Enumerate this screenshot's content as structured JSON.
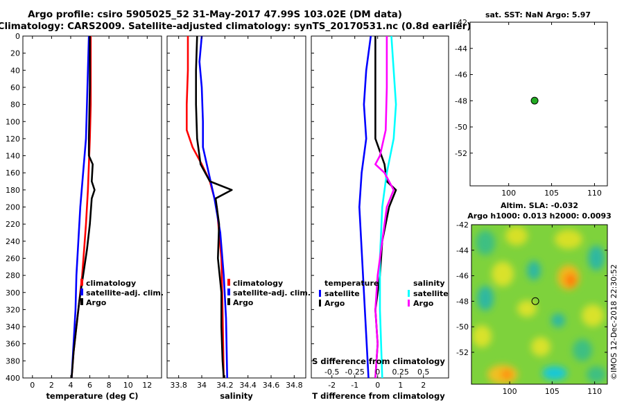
{
  "header": {
    "line1": "Argo profile: csiro 5905025_52 31-May-2017 47.99S 103.02E (DM data)",
    "line2": "Climatology: CARS2009. Satellite-adjusted climatology: synTS_20170531.nc (0.8d earlier)"
  },
  "colors": {
    "climatology": "#ff0000",
    "satellite": "#0000ff",
    "argo": "#000000",
    "sal_satellite": "#00ffff",
    "sal_argo": "#ff00ff"
  },
  "chart_data": [
    {
      "id": "temp",
      "type": "line",
      "xlabel": "temperature (deg C)",
      "xlim": [
        -1,
        13.5
      ],
      "ylim": [
        0,
        400
      ],
      "xticks": [
        0,
        2,
        4,
        6,
        8,
        10,
        12
      ],
      "yticks": [
        0,
        20,
        40,
        60,
        80,
        100,
        120,
        140,
        160,
        180,
        200,
        220,
        240,
        260,
        280,
        300,
        320,
        340,
        360,
        380,
        400
      ],
      "legend": {
        "position": "bottom-right",
        "entries": [
          "climatology",
          "satellite-adj. clim.",
          "Argo"
        ]
      },
      "series": [
        {
          "name": "climatology",
          "color": "#ff0000",
          "points": [
            [
              6.1,
              0
            ],
            [
              6.1,
              40
            ],
            [
              6.1,
              80
            ],
            [
              6.0,
              120
            ],
            [
              5.9,
              150
            ],
            [
              5.8,
              180
            ],
            [
              5.6,
              220
            ],
            [
              5.4,
              250
            ],
            [
              5.2,
              280
            ],
            [
              4.9,
              310
            ],
            [
              4.6,
              340
            ],
            [
              4.3,
              370
            ],
            [
              4.1,
              400
            ]
          ]
        },
        {
          "name": "satellite-adj. clim.",
          "color": "#0000ff",
          "points": [
            [
              5.9,
              0
            ],
            [
              5.8,
              40
            ],
            [
              5.7,
              80
            ],
            [
              5.6,
              120
            ],
            [
              5.3,
              160
            ],
            [
              5.0,
              200
            ],
            [
              4.8,
              240
            ],
            [
              4.6,
              280
            ],
            [
              4.5,
              320
            ],
            [
              4.3,
              360
            ],
            [
              4.1,
              400
            ]
          ]
        },
        {
          "name": "Argo",
          "color": "#000000",
          "points": [
            [
              6.0,
              0
            ],
            [
              6.0,
              60
            ],
            [
              5.9,
              120
            ],
            [
              5.9,
              140
            ],
            [
              6.3,
              150
            ],
            [
              6.2,
              170
            ],
            [
              6.5,
              180
            ],
            [
              6.2,
              190
            ],
            [
              6.0,
              220
            ],
            [
              5.7,
              250
            ],
            [
              5.3,
              280
            ],
            [
              4.9,
              310
            ],
            [
              4.6,
              340
            ],
            [
              4.3,
              370
            ],
            [
              4.1,
              400
            ]
          ]
        }
      ]
    },
    {
      "id": "sal",
      "type": "line",
      "xlabel": "salinity",
      "xlim": [
        33.7,
        34.9
      ],
      "ylim": [
        0,
        400
      ],
      "xticks": [
        33.8,
        34,
        34.2,
        34.4,
        34.6,
        34.8
      ],
      "legend": {
        "position": "bottom-right",
        "entries": [
          "climatology",
          "satellite-adj. clim.",
          "Argo"
        ]
      },
      "series": [
        {
          "name": "climatology",
          "color": "#ff0000",
          "points": [
            [
              33.88,
              0
            ],
            [
              33.88,
              40
            ],
            [
              33.87,
              80
            ],
            [
              33.87,
              110
            ],
            [
              33.92,
              130
            ],
            [
              34.0,
              150
            ],
            [
              34.07,
              170
            ],
            [
              34.13,
              200
            ],
            [
              34.17,
              260
            ],
            [
              34.18,
              320
            ],
            [
              34.19,
              400
            ]
          ]
        },
        {
          "name": "satellite-adj. clim.",
          "color": "#0000ff",
          "points": [
            [
              34.0,
              0
            ],
            [
              33.98,
              30
            ],
            [
              34.0,
              60
            ],
            [
              34.01,
              100
            ],
            [
              34.01,
              130
            ],
            [
              34.06,
              160
            ],
            [
              34.11,
              190
            ],
            [
              34.16,
              230
            ],
            [
              34.19,
              280
            ],
            [
              34.21,
              330
            ],
            [
              34.22,
              400
            ]
          ]
        },
        {
          "name": "Argo",
          "color": "#000000",
          "points": [
            [
              33.96,
              0
            ],
            [
              33.95,
              40
            ],
            [
              33.95,
              80
            ],
            [
              33.96,
              120
            ],
            [
              33.99,
              150
            ],
            [
              34.07,
              170
            ],
            [
              34.26,
              180
            ],
            [
              34.12,
              190
            ],
            [
              34.15,
              220
            ],
            [
              34.14,
              260
            ],
            [
              34.17,
              300
            ],
            [
              34.17,
              340
            ],
            [
              34.18,
              380
            ],
            [
              34.19,
              400
            ]
          ]
        }
      ]
    },
    {
      "id": "diff",
      "type": "line",
      "xlabel": "T difference from climatology",
      "top_label": "S difference from climatology",
      "xlim": [
        -2.9,
        3.1
      ],
      "ylim": [
        0,
        400
      ],
      "xticks": [
        -2,
        -1,
        0,
        1,
        2
      ],
      "top_ticks": [
        {
          "label": "-0.5",
          "at": -2.0
        },
        {
          "label": "-0.25",
          "at": -1.0
        },
        {
          "label": "0",
          "at": 0.0
        },
        {
          "label": "0.25",
          "at": 1.0
        },
        {
          "label": "0.5",
          "at": 2.0
        }
      ],
      "legend_left": {
        "title": "temperature",
        "entries": [
          "satellite",
          "Argo"
        ]
      },
      "legend_right": {
        "title": "salinity",
        "entries": [
          "satellite",
          "Argo"
        ]
      },
      "series": [
        {
          "name": "temperature satellite",
          "color": "#0000ff",
          "points": [
            [
              -0.3,
              0
            ],
            [
              -0.5,
              40
            ],
            [
              -0.6,
              80
            ],
            [
              -0.5,
              120
            ],
            [
              -0.7,
              160
            ],
            [
              -0.8,
              200
            ],
            [
              -0.7,
              250
            ],
            [
              -0.6,
              300
            ],
            [
              -0.5,
              350
            ],
            [
              -0.4,
              400
            ]
          ]
        },
        {
          "name": "temperature Argo",
          "color": "#000000",
          "points": [
            [
              -0.1,
              0
            ],
            [
              -0.1,
              60
            ],
            [
              -0.1,
              120
            ],
            [
              0.3,
              150
            ],
            [
              0.4,
              170
            ],
            [
              0.8,
              180
            ],
            [
              0.5,
              200
            ],
            [
              0.2,
              240
            ],
            [
              0.1,
              280
            ],
            [
              -0.1,
              320
            ],
            [
              0.0,
              360
            ],
            [
              -0.1,
              400
            ]
          ]
        },
        {
          "name": "salinity satellite",
          "color": "#00ffff",
          "points": [
            [
              0.6,
              0
            ],
            [
              0.7,
              40
            ],
            [
              0.8,
              80
            ],
            [
              0.7,
              120
            ],
            [
              0.4,
              160
            ],
            [
              0.2,
              200
            ],
            [
              0.1,
              260
            ],
            [
              0.1,
              320
            ],
            [
              0.2,
              400
            ]
          ]
        },
        {
          "name": "salinity Argo",
          "color": "#ff00ff",
          "points": [
            [
              0.4,
              0
            ],
            [
              0.4,
              60
            ],
            [
              0.35,
              110
            ],
            [
              0.1,
              140
            ],
            [
              -0.1,
              150
            ],
            [
              0.3,
              160
            ],
            [
              0.7,
              180
            ],
            [
              0.4,
              200
            ],
            [
              0.2,
              240
            ],
            [
              0.0,
              280
            ],
            [
              -0.1,
              320
            ],
            [
              0.0,
              360
            ],
            [
              -0.1,
              400
            ]
          ]
        }
      ]
    }
  ],
  "map_sst": {
    "title": "sat. SST: NaN Argo: 5.97",
    "xticks": [
      "100",
      "105",
      "110"
    ],
    "yticks": [
      "-42",
      "-44",
      "-46",
      "-48",
      "-50",
      "-52"
    ],
    "xlim": [
      95.5,
      111.5
    ],
    "ylim": [
      -42,
      -54.5
    ],
    "marker": {
      "lon": 103.02,
      "lat": -47.99,
      "color": "#22aa22"
    }
  },
  "map_sla": {
    "title1": "Altim. SLA: -0.032",
    "title2": "Argo h1000: 0.013 h2000: 0.0093",
    "xticks": [
      "100",
      "105",
      "110"
    ],
    "yticks": [
      "-42",
      "-44",
      "-46",
      "-48",
      "-50",
      "-52"
    ],
    "marker": {
      "lon": 103.02,
      "lat": -47.99
    }
  },
  "yticks_main": [
    "0",
    "20",
    "40",
    "60",
    "80",
    "100",
    "120",
    "140",
    "160",
    "180",
    "200",
    "220",
    "240",
    "260",
    "280",
    "300",
    "320",
    "340",
    "360",
    "380",
    "400"
  ],
  "watermark": "©IMOS 12-Dec-2018 22:30:52"
}
